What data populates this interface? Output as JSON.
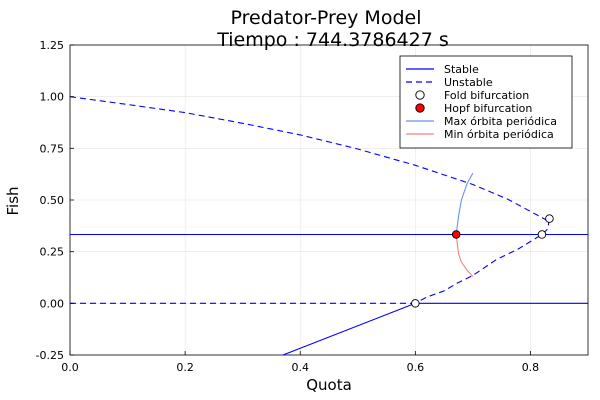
{
  "chart_data": {
    "type": "line",
    "title": "Predator-Prey Model",
    "subtitle": "Tiempo : 744.3786427 s",
    "xlabel": "Quota",
    "ylabel": "Fish",
    "xlim": [
      0,
      0.9
    ],
    "ylim": [
      -0.25,
      1.25
    ],
    "xticks": [
      "0.0",
      "0.2",
      "0.4",
      "0.6",
      "0.8"
    ],
    "xtick_values": [
      0,
      0.2,
      0.4,
      0.6,
      0.8
    ],
    "yticks": [
      "-0.25",
      "0.00",
      "0.25",
      "0.50",
      "0.75",
      "1.00",
      "1.25"
    ],
    "ytick_values": [
      -0.25,
      0,
      0.25,
      0.5,
      0.75,
      1.0,
      1.25
    ],
    "grid": true,
    "legend_position": "top-right",
    "colors": {
      "stable": "#0000ff",
      "unstable": "#0000ff",
      "max_orbit": "#6495ed",
      "min_orbit": "#f08080",
      "hopf": "#ff0000",
      "fold": "#ffffff"
    },
    "legend": [
      {
        "label": "Stable",
        "kind": "solid",
        "color": "#0000ff"
      },
      {
        "label": "Unstable",
        "kind": "dashed",
        "color": "#0000ff"
      },
      {
        "label": "Fold bifurcation",
        "kind": "marker",
        "color": "#ffffff"
      },
      {
        "label": "Hopf bifurcation",
        "kind": "marker",
        "color": "#ff0000"
      },
      {
        "label": "Max órbita periódica",
        "kind": "solid",
        "color": "#6495ed"
      },
      {
        "label": "Min órbita periódica",
        "kind": "solid",
        "color": "#f08080"
      }
    ],
    "series": [
      {
        "style": "solid",
        "color": "#0000ff",
        "x": [
          0,
          0.9
        ],
        "y": [
          0.333,
          0.333
        ]
      },
      {
        "style": "dashed",
        "color": "#0000ff",
        "x": [
          0.671,
          0.9
        ],
        "y": [
          0.333,
          0.333
        ]
      },
      {
        "style": "solid",
        "color": "#0000ff",
        "x": [
          0.6,
          0.9
        ],
        "y": [
          0,
          0
        ]
      },
      {
        "style": "dashed",
        "color": "#0000ff",
        "x": [
          0,
          0.6
        ],
        "y": [
          0,
          0
        ]
      },
      {
        "style": "solid",
        "color": "#0000ff",
        "x": [
          0.37,
          0.6
        ],
        "y": [
          -0.25,
          0
        ]
      },
      {
        "style": "dashed",
        "color": "#0000ff",
        "x": [
          0,
          0.1,
          0.2,
          0.3,
          0.4,
          0.5,
          0.6,
          0.7,
          0.76,
          0.8,
          0.83,
          0.833,
          0.83,
          0.82,
          0.78,
          0.74,
          0.7,
          0.671,
          0.65,
          0.62,
          0.6
        ],
        "y": [
          1.0,
          0.962,
          0.923,
          0.871,
          0.815,
          0.747,
          0.668,
          0.575,
          0.505,
          0.445,
          0.4,
          0.41,
          0.36,
          0.333,
          0.265,
          0.21,
          0.135,
          0.095,
          0.06,
          0.03,
          0
        ]
      },
      {
        "style": "solid",
        "color": "#6495ed",
        "x": [
          0.671,
          0.675,
          0.68,
          0.69,
          0.7
        ],
        "y": [
          0.333,
          0.42,
          0.5,
          0.58,
          0.63
        ]
      },
      {
        "style": "solid",
        "color": "#f08080",
        "x": [
          0.671,
          0.675,
          0.68,
          0.69,
          0.7
        ],
        "y": [
          0.333,
          0.24,
          0.2,
          0.16,
          0.13
        ]
      }
    ],
    "points": [
      {
        "type": "fold",
        "x": 0.6,
        "y": 0.0,
        "color": "#ffffff"
      },
      {
        "type": "fold",
        "x": 0.82,
        "y": 0.333,
        "color": "#ffffff"
      },
      {
        "type": "fold",
        "x": 0.833,
        "y": 0.41,
        "color": "#ffffff"
      },
      {
        "type": "hopf",
        "x": 0.671,
        "y": 0.333,
        "color": "#ff0000"
      }
    ]
  }
}
